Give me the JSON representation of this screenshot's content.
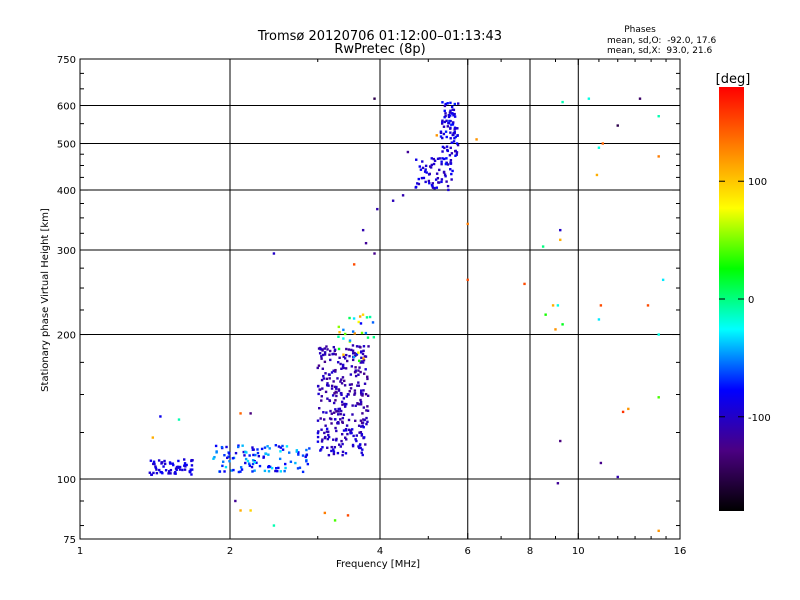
{
  "chart_data": {
    "type": "scatter",
    "title": "Tromsø 20120706 01:12:00–01:13:43",
    "subtitle": "RwPretec (8p)",
    "xlabel": "Frequency [MHz]",
    "ylabel": "Stationary phase Virtual Height [km]",
    "x_scale": "log",
    "y_scale": "log",
    "xlim": [
      1,
      16
    ],
    "ylim": [
      75,
      750
    ],
    "x_ticks": [
      1,
      2,
      4,
      6,
      8,
      10,
      16
    ],
    "y_ticks": [
      75,
      100,
      200,
      300,
      400,
      500,
      600,
      750
    ],
    "grid": true,
    "phase_stats": {
      "heading": "Phases",
      "o_line": "mean, sd,O:  -92.0, 17.6",
      "x_line": "mean, sd,X:  93.0, 21.6"
    },
    "colorbar": {
      "label": "[deg]",
      "range": [
        -180,
        180
      ],
      "ticks": [
        100,
        0,
        -100
      ],
      "tick_labels": [
        "100",
        "0",
        "-100"
      ],
      "colors": [
        "#000000",
        "#4b0082",
        "#0000ff",
        "#00ffff",
        "#00ff00",
        "#ffff00",
        "#ff8000",
        "#ff0000"
      ]
    },
    "clusters": [
      {
        "x": [
          1.38,
          1.7
        ],
        "y": [
          102,
          110
        ],
        "n": 60,
        "phase": [
          -100,
          -80
        ]
      },
      {
        "x": [
          1.85,
          2.9
        ],
        "y": [
          103,
          118
        ],
        "n": 110,
        "phase": [
          -95,
          -30
        ]
      },
      {
        "x": [
          3.0,
          3.75
        ],
        "y": [
          112,
          130
        ],
        "n": 80,
        "phase": [
          -115,
          -85
        ]
      },
      {
        "x": [
          3.0,
          3.8
        ],
        "y": [
          130,
          190
        ],
        "n": 220,
        "phase": [
          -125,
          -95
        ]
      },
      {
        "x": [
          3.3,
          3.9
        ],
        "y": [
          175,
          220
        ],
        "n": 30,
        "phase": [
          -80,
          120
        ]
      },
      {
        "x": [
          4.7,
          5.6
        ],
        "y": [
          400,
          470
        ],
        "n": 60,
        "phase": [
          -110,
          -80
        ]
      },
      {
        "x": [
          5.3,
          5.75
        ],
        "y": [
          450,
          610
        ],
        "n": 90,
        "phase": [
          -110,
          -70
        ]
      }
    ],
    "scatter_points": [
      {
        "x": 1.45,
        "y": 135,
        "phase": -85
      },
      {
        "x": 1.58,
        "y": 133,
        "phase": -10
      },
      {
        "x": 1.4,
        "y": 122,
        "phase": 110
      },
      {
        "x": 2.05,
        "y": 90,
        "phase": -120
      },
      {
        "x": 2.1,
        "y": 86,
        "phase": 110
      },
      {
        "x": 2.2,
        "y": 86,
        "phase": 95
      },
      {
        "x": 2.45,
        "y": 80,
        "phase": -10
      },
      {
        "x": 2.1,
        "y": 137,
        "phase": 140
      },
      {
        "x": 2.2,
        "y": 137,
        "phase": -130
      },
      {
        "x": 2.45,
        "y": 295,
        "phase": -100
      },
      {
        "x": 3.1,
        "y": 85,
        "phase": 130
      },
      {
        "x": 3.25,
        "y": 82,
        "phase": 40
      },
      {
        "x": 3.45,
        "y": 84,
        "phase": 150
      },
      {
        "x": 3.7,
        "y": 330,
        "phase": -110
      },
      {
        "x": 3.75,
        "y": 310,
        "phase": -120
      },
      {
        "x": 3.9,
        "y": 295,
        "phase": -125
      },
      {
        "x": 3.55,
        "y": 280,
        "phase": 150
      },
      {
        "x": 3.9,
        "y": 620,
        "phase": -150
      },
      {
        "x": 3.95,
        "y": 365,
        "phase": -110
      },
      {
        "x": 4.25,
        "y": 380,
        "phase": -105
      },
      {
        "x": 4.45,
        "y": 390,
        "phase": -110
      },
      {
        "x": 4.55,
        "y": 480,
        "phase": -120
      },
      {
        "x": 5.2,
        "y": 520,
        "phase": 120
      },
      {
        "x": 6.0,
        "y": 260,
        "phase": 150
      },
      {
        "x": 6.0,
        "y": 340,
        "phase": 130
      },
      {
        "x": 6.25,
        "y": 510,
        "phase": 120
      },
      {
        "x": 7.8,
        "y": 255,
        "phase": 150
      },
      {
        "x": 8.5,
        "y": 305,
        "phase": 0
      },
      {
        "x": 8.6,
        "y": 220,
        "phase": 30
      },
      {
        "x": 8.9,
        "y": 230,
        "phase": 110
      },
      {
        "x": 9.0,
        "y": 205,
        "phase": 120
      },
      {
        "x": 9.1,
        "y": 230,
        "phase": -20
      },
      {
        "x": 9.2,
        "y": 315,
        "phase": 110
      },
      {
        "x": 9.2,
        "y": 330,
        "phase": -100
      },
      {
        "x": 9.2,
        "y": 120,
        "phase": -130
      },
      {
        "x": 9.1,
        "y": 98,
        "phase": -120
      },
      {
        "x": 9.3,
        "y": 610,
        "phase": -10
      },
      {
        "x": 9.3,
        "y": 210,
        "phase": 20
      },
      {
        "x": 10.5,
        "y": 620,
        "phase": -20
      },
      {
        "x": 11.0,
        "y": 490,
        "phase": -20
      },
      {
        "x": 11.2,
        "y": 500,
        "phase": 140
      },
      {
        "x": 11.1,
        "y": 230,
        "phase": 150
      },
      {
        "x": 11.0,
        "y": 215,
        "phase": -30
      },
      {
        "x": 10.9,
        "y": 430,
        "phase": 110
      },
      {
        "x": 11.1,
        "y": 108,
        "phase": -125
      },
      {
        "x": 12.0,
        "y": 545,
        "phase": -150
      },
      {
        "x": 12.0,
        "y": 101,
        "phase": -110
      },
      {
        "x": 12.3,
        "y": 138,
        "phase": 160
      },
      {
        "x": 12.6,
        "y": 140,
        "phase": 120
      },
      {
        "x": 13.3,
        "y": 620,
        "phase": -140
      },
      {
        "x": 13.8,
        "y": 230,
        "phase": 150
      },
      {
        "x": 14.5,
        "y": 570,
        "phase": -10
      },
      {
        "x": 14.5,
        "y": 470,
        "phase": 130
      },
      {
        "x": 14.5,
        "y": 200,
        "phase": -20
      },
      {
        "x": 14.5,
        "y": 148,
        "phase": 40
      },
      {
        "x": 14.5,
        "y": 78,
        "phase": 120
      },
      {
        "x": 14.8,
        "y": 260,
        "phase": -30
      }
    ]
  }
}
